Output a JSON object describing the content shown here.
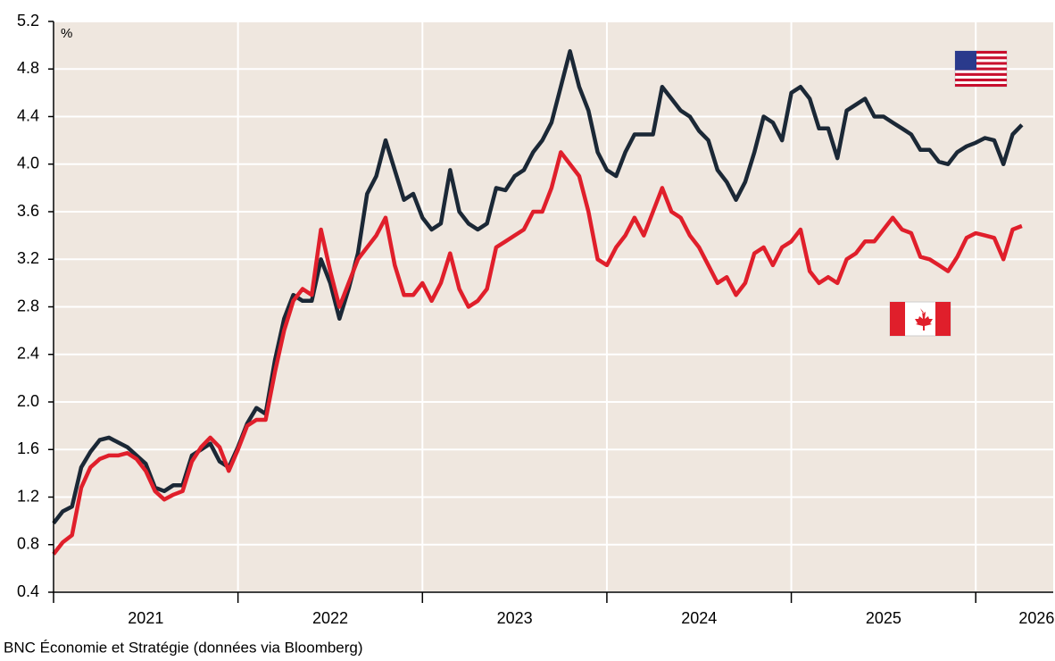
{
  "chart_data": {
    "type": "line",
    "subtitle": "%",
    "source": "BNC Économie et Stratégie (données via Bloomberg)",
    "x": [
      2021,
      2021.05,
      2021.1,
      2021.15,
      2021.2,
      2021.25,
      2021.3,
      2021.35,
      2021.4,
      2021.45,
      2021.5,
      2021.55,
      2021.6,
      2021.65,
      2021.7,
      2021.75,
      2021.8,
      2021.85,
      2021.9,
      2021.95,
      2022,
      2022.05,
      2022.1,
      2022.15,
      2022.2,
      2022.25,
      2022.3,
      2022.35,
      2022.4,
      2022.45,
      2022.5,
      2022.55,
      2022.6,
      2022.65,
      2022.7,
      2022.75,
      2022.8,
      2022.85,
      2022.9,
      2022.95,
      2023,
      2023.05,
      2023.1,
      2023.15,
      2023.2,
      2023.25,
      2023.3,
      2023.35,
      2023.4,
      2023.45,
      2023.5,
      2023.55,
      2023.6,
      2023.65,
      2023.7,
      2023.75,
      2023.8,
      2023.85,
      2023.9,
      2023.95,
      2024,
      2024.05,
      2024.1,
      2024.15,
      2024.2,
      2024.25,
      2024.3,
      2024.35,
      2024.4,
      2024.45,
      2024.5,
      2024.55,
      2024.6,
      2024.65,
      2024.7,
      2024.75,
      2024.8,
      2024.85,
      2024.9,
      2024.95,
      2025,
      2025.05,
      2025.1,
      2025.15,
      2025.2,
      2025.25,
      2025.3,
      2025.35,
      2025.4,
      2025.45,
      2025.5,
      2025.55,
      2025.6,
      2025.65,
      2025.7,
      2025.75,
      2025.8,
      2025.85,
      2025.9,
      2025.95,
      2026,
      2026.05,
      2026.1,
      2026.15,
      2026.2,
      2026.25
    ],
    "series": [
      {
        "color": "#1b2836",
        "values": [
          0.98,
          1.08,
          1.12,
          1.45,
          1.58,
          1.68,
          1.7,
          1.66,
          1.62,
          1.55,
          1.48,
          1.28,
          1.25,
          1.3,
          1.3,
          1.55,
          1.6,
          1.65,
          1.5,
          1.45,
          1.62,
          1.82,
          1.95,
          1.9,
          2.35,
          2.7,
          2.9,
          2.85,
          2.85,
          3.2,
          3.0,
          2.7,
          2.95,
          3.25,
          3.75,
          3.9,
          4.2,
          3.95,
          3.7,
          3.75,
          3.55,
          3.45,
          3.5,
          3.95,
          3.6,
          3.5,
          3.45,
          3.5,
          3.8,
          3.78,
          3.9,
          3.95,
          4.1,
          4.2,
          4.35,
          4.65,
          4.95,
          4.65,
          4.45,
          4.1,
          3.95,
          3.9,
          4.1,
          4.25,
          4.25,
          4.25,
          4.65,
          4.55,
          4.45,
          4.4,
          4.28,
          4.2,
          3.95,
          3.85,
          3.7,
          3.85,
          4.1,
          4.4,
          4.35,
          4.2,
          4.6,
          4.65,
          4.55,
          4.3,
          4.3,
          4.05,
          4.45,
          4.5,
          4.55,
          4.4,
          4.4,
          4.35,
          4.3,
          4.25,
          4.12,
          4.12,
          4.02,
          4.0,
          4.1,
          4.15,
          4.18,
          4.22,
          4.2,
          4.0,
          4.25,
          4.33
        ]
      },
      {
        "color": "#e01f2b",
        "values": [
          0.72,
          0.82,
          0.88,
          1.28,
          1.45,
          1.52,
          1.55,
          1.55,
          1.57,
          1.52,
          1.42,
          1.25,
          1.18,
          1.22,
          1.25,
          1.5,
          1.62,
          1.7,
          1.62,
          1.42,
          1.6,
          1.8,
          1.85,
          1.85,
          2.25,
          2.6,
          2.85,
          2.95,
          2.9,
          3.45,
          3.1,
          2.8,
          3.0,
          3.2,
          3.3,
          3.4,
          3.55,
          3.15,
          2.9,
          2.9,
          3.0,
          2.85,
          3.0,
          3.25,
          2.95,
          2.8,
          2.85,
          2.95,
          3.3,
          3.35,
          3.4,
          3.45,
          3.6,
          3.6,
          3.8,
          4.1,
          4.0,
          3.9,
          3.6,
          3.2,
          3.15,
          3.3,
          3.4,
          3.55,
          3.4,
          3.6,
          3.8,
          3.6,
          3.55,
          3.4,
          3.3,
          3.15,
          3.0,
          3.05,
          2.9,
          3.0,
          3.25,
          3.3,
          3.15,
          3.3,
          3.35,
          3.45,
          3.1,
          3.0,
          3.05,
          3.0,
          3.2,
          3.25,
          3.35,
          3.35,
          3.45,
          3.55,
          3.45,
          3.42,
          3.22,
          3.2,
          3.15,
          3.1,
          3.22,
          3.38,
          3.42,
          3.4,
          3.38,
          3.2,
          3.45,
          3.48
        ]
      }
    ],
    "xlim": [
      2021,
      2026.42
    ],
    "xticks": [
      2021,
      2022,
      2023,
      2024,
      2025,
      2026
    ],
    "xtick_labels": [
      {
        "value": 2021.5,
        "label": "2021"
      },
      {
        "value": 2022.5,
        "label": "2022"
      },
      {
        "value": 2023.5,
        "label": "2023"
      },
      {
        "value": 2024.5,
        "label": "2024"
      },
      {
        "value": 2025.5,
        "label": "2025"
      },
      {
        "value": 2026.33,
        "label": "2026"
      }
    ],
    "ylim": [
      0.4,
      5.2
    ],
    "yticks": [
      0.4,
      0.8,
      1.2,
      1.6,
      {
        "value": 2,
        "label": "2.0"
      },
      2.4,
      2.8,
      3.2,
      3.6,
      {
        "value": 4,
        "label": "4.0"
      },
      4.4,
      4.8,
      5.2
    ],
    "grid": true
  }
}
